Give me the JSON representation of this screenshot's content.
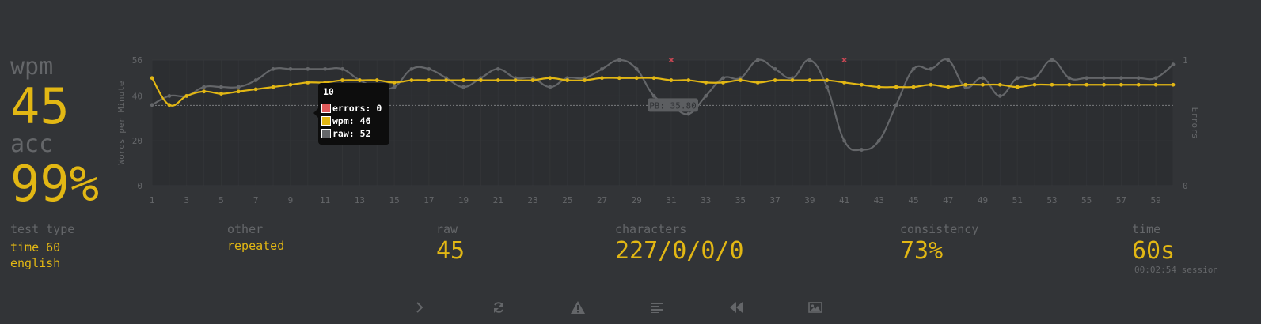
{
  "result": {
    "wpm_label": "wpm",
    "wpm_value": "45",
    "acc_label": "acc",
    "acc_value": "99%"
  },
  "details": {
    "test_type": {
      "label": "test type",
      "lines": [
        "time 60",
        "english"
      ]
    },
    "other": {
      "label": "other",
      "value": "repeated"
    },
    "raw": {
      "label": "raw",
      "value": "45"
    },
    "characters": {
      "label": "characters",
      "value": "227/0/0/0"
    },
    "consistency": {
      "label": "consistency",
      "value": "73%"
    },
    "time": {
      "label": "time",
      "value": "60s",
      "session": "00:02:54 session"
    }
  },
  "tooltip": {
    "title": "10",
    "rows": [
      {
        "text": "errors: 0",
        "color": "#e05a5a"
      },
      {
        "text": "wpm: 46",
        "color": "#e2b714"
      },
      {
        "text": "raw: 52",
        "color": "#646669"
      }
    ]
  },
  "actions": [
    {
      "name": "next-test",
      "icon": "chevron-right-icon"
    },
    {
      "name": "repeat-test",
      "icon": "refresh-icon"
    },
    {
      "name": "practice-words",
      "icon": "warning-icon"
    },
    {
      "name": "toggle-words-history",
      "icon": "align-left-icon"
    },
    {
      "name": "watch-replay",
      "icon": "backward-icon"
    },
    {
      "name": "save-screenshot",
      "icon": "image-icon"
    }
  ],
  "colors": {
    "background": "#323437",
    "main": "#e2b714",
    "sub": "#646669",
    "error": "#ca4754"
  },
  "chart_data": {
    "type": "line",
    "ylabel": "Words per Minute",
    "y2label": "Errors",
    "ylim": [
      0,
      56
    ],
    "y_ticks": [
      0,
      20,
      40,
      56
    ],
    "y2lim": [
      0,
      1
    ],
    "y2_ticks": [
      0,
      1
    ],
    "x_ticks": [
      1,
      3,
      5,
      7,
      9,
      11,
      13,
      15,
      17,
      19,
      21,
      23,
      25,
      27,
      29,
      31,
      33,
      35,
      37,
      39,
      41,
      43,
      45,
      47,
      49,
      51,
      53,
      55,
      57,
      59
    ],
    "x": [
      1,
      2,
      3,
      4,
      5,
      6,
      7,
      8,
      9,
      10,
      11,
      12,
      13,
      14,
      15,
      16,
      17,
      18,
      19,
      20,
      21,
      22,
      23,
      24,
      25,
      26,
      27,
      28,
      29,
      30,
      31,
      32,
      33,
      34,
      35,
      36,
      37,
      39,
      38,
      40,
      41,
      42,
      43,
      44,
      45,
      46,
      47,
      48,
      49,
      50,
      51,
      52,
      53,
      54,
      55,
      56,
      57,
      58,
      59,
      60
    ],
    "series": [
      {
        "name": "wpm",
        "color": "#e2b714",
        "values": [
          48,
          36,
          40,
          42,
          41,
          42,
          43,
          44,
          45,
          46,
          46,
          47,
          47,
          47,
          46,
          47,
          47,
          47,
          47,
          47,
          47,
          47,
          47,
          48,
          47,
          47,
          48,
          48,
          48,
          48,
          47,
          47,
          46,
          46,
          47,
          46,
          47,
          47,
          47,
          47,
          46,
          45,
          44,
          44,
          44,
          45,
          44,
          45,
          45,
          45,
          44,
          45,
          45,
          45,
          45,
          45,
          45,
          45,
          45,
          45
        ]
      },
      {
        "name": "raw",
        "color": "#646669",
        "values": [
          36,
          40,
          40,
          44,
          44,
          44,
          47,
          52,
          52,
          52,
          52,
          52,
          47,
          44,
          44,
          52,
          52,
          48,
          44,
          48,
          52,
          48,
          48,
          44,
          48,
          48,
          52,
          56,
          52,
          40,
          36,
          32,
          40,
          48,
          48,
          56,
          52,
          48,
          56,
          44,
          20,
          16,
          20,
          36,
          52,
          52,
          56,
          44,
          48,
          40,
          48,
          48,
          56,
          48,
          48,
          48,
          48,
          48,
          48,
          54
        ]
      }
    ],
    "error_points": [
      {
        "x": 31,
        "y": 1
      },
      {
        "x": 41,
        "y": 1
      }
    ],
    "annotation": {
      "label": "PB: 35.80",
      "y": 35.8
    }
  }
}
